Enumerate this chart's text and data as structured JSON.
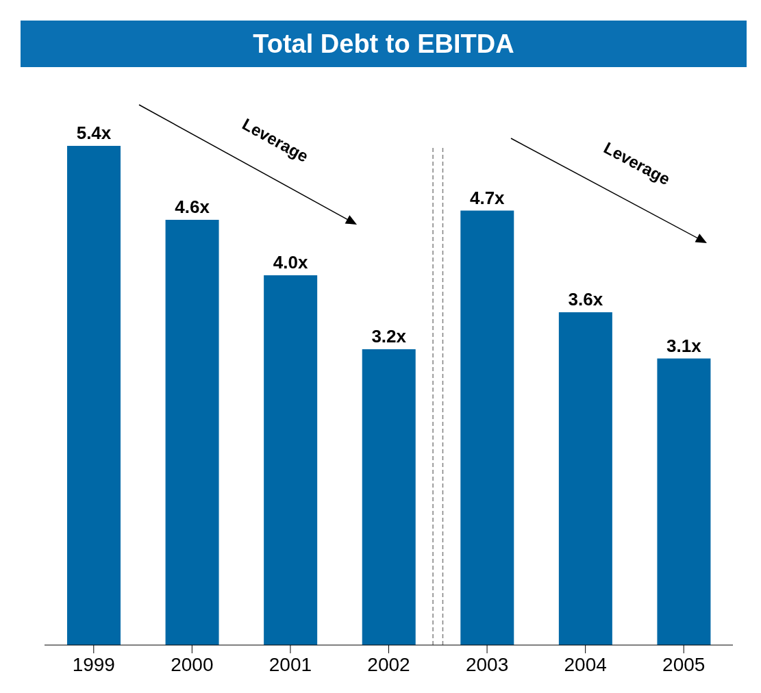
{
  "chart_data": {
    "type": "bar",
    "title": "Total Debt to EBITDA",
    "x": [
      1999,
      2000,
      2001,
      2002,
      2003,
      2004,
      2005
    ],
    "xlim": [
      1998.5,
      2005.5
    ],
    "xticks": [
      1999,
      2000,
      2001,
      2002,
      2003,
      2004,
      2005
    ],
    "values": [
      5.4,
      4.6,
      4.0,
      3.2,
      4.7,
      3.6,
      3.1
    ],
    "value_labels": [
      "5.4x",
      "4.6x",
      "4.0x",
      "3.2x",
      "4.7x",
      "3.6x",
      "3.1x"
    ],
    "color": "#0068a6",
    "ref_lines": [
      {
        "axis": "x",
        "value": 2002.45,
        "line_style": "dashed",
        "color": "#808080"
      },
      {
        "axis": "x",
        "value": 2002.55,
        "line_style": "dashed",
        "color": "#808080"
      }
    ],
    "annotations": [
      "Leverage",
      "Leverage"
    ],
    "grid": false,
    "legend": false
  }
}
